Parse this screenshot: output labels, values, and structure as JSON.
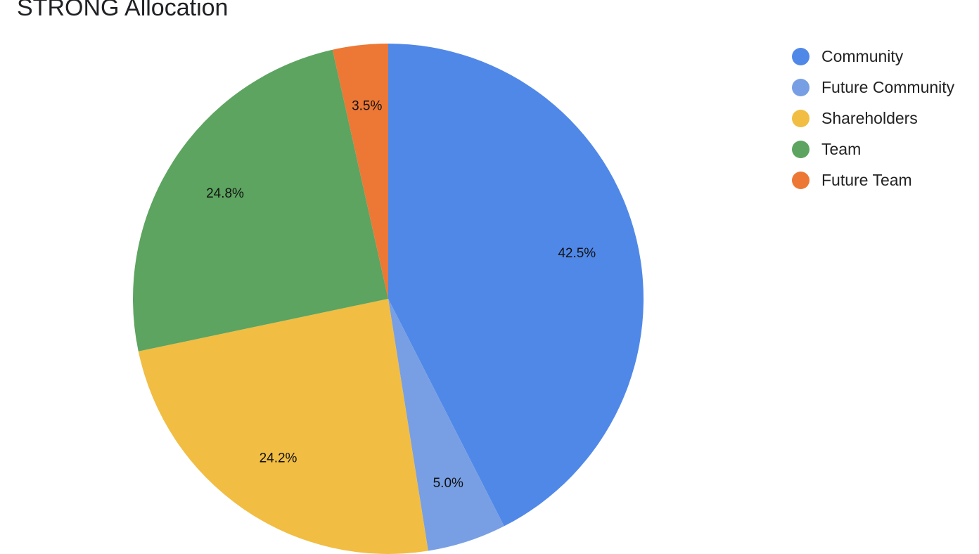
{
  "chart_data": {
    "type": "pie",
    "title": "STRONG Allocation",
    "legend_position": "right",
    "slices": [
      {
        "name": "Community",
        "value": 42.5,
        "label": "42.5%",
        "color": "#5088e8"
      },
      {
        "name": "Future Community",
        "value": 5.0,
        "label": "5.0%",
        "color": "#789fe4"
      },
      {
        "name": "Shareholders",
        "value": 24.2,
        "label": "24.2%",
        "color": "#f1bd43"
      },
      {
        "name": "Team",
        "value": 24.8,
        "label": "24.8%",
        "color": "#5ca45f"
      },
      {
        "name": "Future Team",
        "value": 3.5,
        "label": "3.5%",
        "color": "#ed7735"
      }
    ]
  }
}
